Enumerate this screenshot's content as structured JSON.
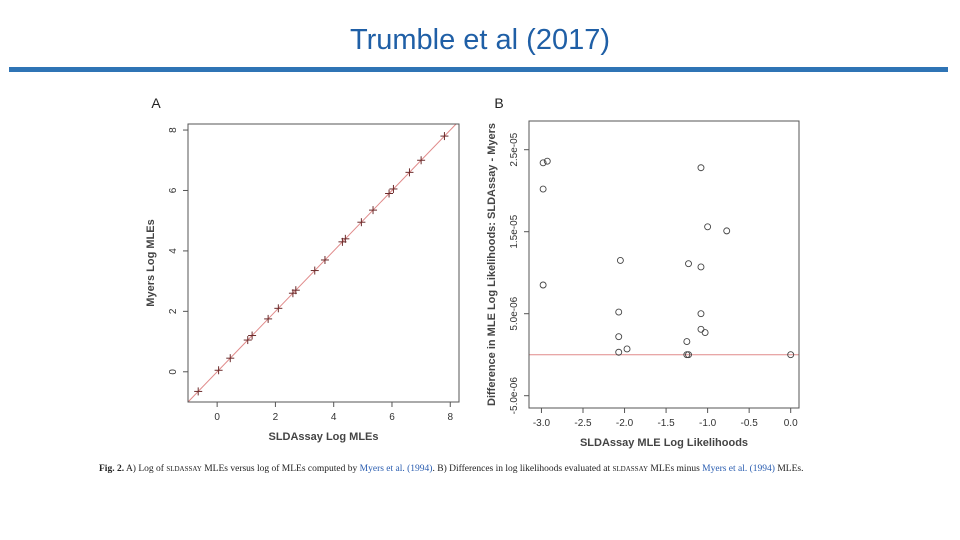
{
  "slide": {
    "title": "Trumble et al (2017)"
  },
  "chart_data": [
    {
      "panel": "A",
      "type": "scatter",
      "xlabel": "SLDAssay Log MLEs",
      "ylabel": "Myers Log MLEs",
      "xlim": [
        -1,
        8.3
      ],
      "ylim": [
        -1,
        8.2
      ],
      "xticks": [
        0,
        2,
        4,
        6,
        8
      ],
      "yticks": [
        0,
        2,
        4,
        6,
        8
      ],
      "marker": "plus",
      "reference_line": "y = x",
      "points": [
        {
          "x": -0.65,
          "y": -0.65
        },
        {
          "x": 0.05,
          "y": 0.05
        },
        {
          "x": 0.45,
          "y": 0.45
        },
        {
          "x": 1.05,
          "y": 1.05
        },
        {
          "x": 1.2,
          "y": 1.2
        },
        {
          "x": 1.75,
          "y": 1.75
        },
        {
          "x": 2.1,
          "y": 2.1
        },
        {
          "x": 2.6,
          "y": 2.6
        },
        {
          "x": 2.7,
          "y": 2.7
        },
        {
          "x": 3.35,
          "y": 3.35
        },
        {
          "x": 3.7,
          "y": 3.7
        },
        {
          "x": 4.3,
          "y": 4.3
        },
        {
          "x": 4.4,
          "y": 4.4
        },
        {
          "x": 4.95,
          "y": 4.95
        },
        {
          "x": 5.35,
          "y": 5.35
        },
        {
          "x": 5.9,
          "y": 5.9
        },
        {
          "x": 6.05,
          "y": 6.05
        },
        {
          "x": 6.6,
          "y": 6.6
        },
        {
          "x": 7.0,
          "y": 7.0
        },
        {
          "x": 7.8,
          "y": 7.8
        }
      ]
    },
    {
      "panel": "B",
      "type": "scatter",
      "xlabel": "SLDAssay MLE Log Likelihoods",
      "ylabel": "Difference in MLE Log Likelihoods: SLDAssay - Myers",
      "xlim": [
        -3.15,
        0.1
      ],
      "ylim": [
        -6.5e-06,
        2.85e-05
      ],
      "xticks": [
        -3.0,
        -2.5,
        -2.0,
        -1.5,
        -1.0,
        -0.5,
        0.0
      ],
      "xtick_labels": [
        "-3.0",
        "-2.5",
        "-2.0",
        "-1.5",
        "-1.0",
        "-0.5",
        "0.0"
      ],
      "yticks": [
        -5e-06,
        5e-06,
        1.5e-05,
        2.5e-05
      ],
      "ytick_labels": [
        "-5.0e-06",
        "5.0e-06",
        "1.5e-05",
        "2.5e-05"
      ],
      "marker": "circle",
      "reference_line": "y = 0",
      "points": [
        {
          "x": -2.98,
          "y": 2.34e-05
        },
        {
          "x": -2.93,
          "y": 2.36e-05
        },
        {
          "x": -2.98,
          "y": 2.02e-05
        },
        {
          "x": -2.98,
          "y": 8.5e-06
        },
        {
          "x": -2.05,
          "y": 1.15e-05
        },
        {
          "x": -2.07,
          "y": 5.2e-06
        },
        {
          "x": -2.07,
          "y": 2.2e-06
        },
        {
          "x": -2.07,
          "y": 3e-07
        },
        {
          "x": -1.97,
          "y": 7e-07
        },
        {
          "x": -1.08,
          "y": 2.28e-05
        },
        {
          "x": -1.0,
          "y": 1.56e-05
        },
        {
          "x": -0.77,
          "y": 1.51e-05
        },
        {
          "x": -1.23,
          "y": 1.11e-05
        },
        {
          "x": -1.08,
          "y": 1.07e-05
        },
        {
          "x": -1.08,
          "y": 5e-06
        },
        {
          "x": -1.08,
          "y": 3.1e-06
        },
        {
          "x": -1.03,
          "y": 2.7e-06
        },
        {
          "x": -1.25,
          "y": 1.6e-06
        },
        {
          "x": -1.25,
          "y": 0
        },
        {
          "x": -1.23,
          "y": 0
        },
        {
          "x": 0.0,
          "y": 0
        }
      ]
    }
  ],
  "caption": {
    "label": "Fig. 2.",
    "part1": "A) Log of",
    "tool1": "sldassay",
    "part2": "MLEs versus log of MLEs computed by",
    "ref1": "Myers et al. (1994)",
    "part3": ". B) Differences in log likelihoods evaluated at",
    "tool2": "sldassay",
    "part4": "MLEs minus",
    "ref2": "Myers et al. (1994)",
    "part5": "MLEs."
  }
}
